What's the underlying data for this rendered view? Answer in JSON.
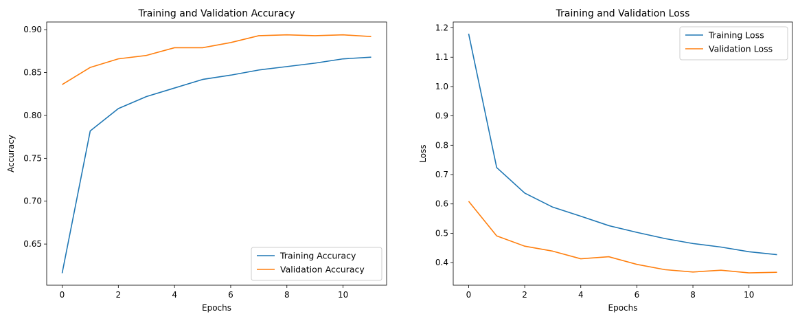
{
  "chart_data": [
    {
      "type": "line",
      "title": "Training and Validation Accuracy",
      "xlabel": "Epochs",
      "ylabel": "Accuracy",
      "xlim": [
        -0.55,
        11.55
      ],
      "ylim": [
        0.602,
        0.909
      ],
      "xticks": [
        0,
        2,
        4,
        6,
        8,
        10
      ],
      "yticks": [
        0.65,
        0.7,
        0.75,
        0.8,
        0.85,
        0.9
      ],
      "ytick_labels": [
        "0.65",
        "0.70",
        "0.75",
        "0.80",
        "0.85",
        "0.90"
      ],
      "grid": false,
      "legend_position": "bottom-right",
      "x": [
        0,
        1,
        2,
        3,
        4,
        5,
        6,
        7,
        8,
        9,
        10,
        11
      ],
      "series": [
        {
          "name": "Training Accuracy",
          "color": "#1f77b4",
          "values": [
            0.616,
            0.782,
            0.808,
            0.822,
            0.832,
            0.842,
            0.847,
            0.853,
            0.857,
            0.861,
            0.866,
            0.868
          ]
        },
        {
          "name": "Validation Accuracy",
          "color": "#ff7f0e",
          "values": [
            0.836,
            0.856,
            0.866,
            0.87,
            0.879,
            0.879,
            0.885,
            0.893,
            0.894,
            0.893,
            0.894,
            0.892
          ]
        }
      ]
    },
    {
      "type": "line",
      "title": "Training and Validation Loss",
      "xlabel": "Epochs",
      "ylabel": "Loss",
      "xlim": [
        -0.55,
        11.55
      ],
      "ylim": [
        0.323,
        1.22
      ],
      "xticks": [
        0,
        2,
        4,
        6,
        8,
        10
      ],
      "yticks": [
        0.4,
        0.5,
        0.6,
        0.7,
        0.8,
        0.9,
        1.0,
        1.1,
        1.2
      ],
      "ytick_labels": [
        "0.4",
        "0.5",
        "0.6",
        "0.7",
        "0.8",
        "0.9",
        "1.0",
        "1.1",
        "1.2"
      ],
      "grid": false,
      "legend_position": "top-right",
      "x": [
        0,
        1,
        2,
        3,
        4,
        5,
        6,
        7,
        8,
        9,
        10,
        11
      ],
      "series": [
        {
          "name": "Training Loss",
          "color": "#1f77b4",
          "values": [
            1.18,
            0.724,
            0.637,
            0.589,
            0.558,
            0.526,
            0.503,
            0.482,
            0.465,
            0.453,
            0.437,
            0.427
          ]
        },
        {
          "name": "Validation Loss",
          "color": "#ff7f0e",
          "values": [
            0.609,
            0.491,
            0.456,
            0.439,
            0.413,
            0.42,
            0.394,
            0.376,
            0.368,
            0.374,
            0.365,
            0.367
          ]
        }
      ]
    }
  ]
}
